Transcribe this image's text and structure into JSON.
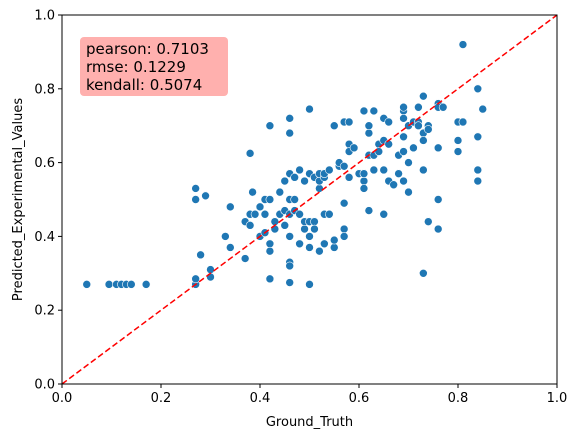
{
  "chart_data": {
    "type": "scatter",
    "xlabel": "Ground_Truth",
    "ylabel": "Predicted_Experimental_Values",
    "xlim": [
      0,
      1
    ],
    "ylim": [
      0,
      1
    ],
    "xticks": [
      "0.0",
      "0.2",
      "0.4",
      "0.6",
      "0.8",
      "1.0"
    ],
    "yticks": [
      "0.0",
      "0.2",
      "0.4",
      "0.6",
      "0.8",
      "1.0"
    ],
    "grid": false,
    "point_color": "#1f77b4",
    "reference_line": {
      "type": "identity",
      "style": "dashed",
      "color": "#ff0000"
    },
    "stats_box": {
      "placement": "top-left",
      "color": "#ffb0ae",
      "lines": [
        "pearson: 0.7103",
        "rmse: 0.1229",
        "kendall: 0.5074"
      ]
    },
    "points": [
      [
        0.05,
        0.27
      ],
      [
        0.095,
        0.27
      ],
      [
        0.11,
        0.27
      ],
      [
        0.12,
        0.27
      ],
      [
        0.13,
        0.27
      ],
      [
        0.14,
        0.27
      ],
      [
        0.17,
        0.27
      ],
      [
        0.27,
        0.27
      ],
      [
        0.27,
        0.285
      ],
      [
        0.27,
        0.5
      ],
      [
        0.27,
        0.53
      ],
      [
        0.28,
        0.35
      ],
      [
        0.29,
        0.51
      ],
      [
        0.3,
        0.29
      ],
      [
        0.3,
        0.31
      ],
      [
        0.33,
        0.4
      ],
      [
        0.34,
        0.37
      ],
      [
        0.34,
        0.48
      ],
      [
        0.37,
        0.34
      ],
      [
        0.37,
        0.44
      ],
      [
        0.38,
        0.43
      ],
      [
        0.38,
        0.46
      ],
      [
        0.385,
        0.52
      ],
      [
        0.39,
        0.46
      ],
      [
        0.38,
        0.625
      ],
      [
        0.4,
        0.48
      ],
      [
        0.4,
        0.4
      ],
      [
        0.41,
        0.41
      ],
      [
        0.41,
        0.46
      ],
      [
        0.41,
        0.5
      ],
      [
        0.42,
        0.5
      ],
      [
        0.42,
        0.38
      ],
      [
        0.42,
        0.36
      ],
      [
        0.42,
        0.285
      ],
      [
        0.42,
        0.7
      ],
      [
        0.43,
        0.42
      ],
      [
        0.43,
        0.44
      ],
      [
        0.44,
        0.46
      ],
      [
        0.44,
        0.52
      ],
      [
        0.45,
        0.55
      ],
      [
        0.45,
        0.47
      ],
      [
        0.45,
        0.43
      ],
      [
        0.46,
        0.57
      ],
      [
        0.46,
        0.5
      ],
      [
        0.46,
        0.46
      ],
      [
        0.46,
        0.4
      ],
      [
        0.46,
        0.33
      ],
      [
        0.46,
        0.32
      ],
      [
        0.46,
        0.275
      ],
      [
        0.46,
        0.68
      ],
      [
        0.46,
        0.72
      ],
      [
        0.47,
        0.56
      ],
      [
        0.47,
        0.5
      ],
      [
        0.47,
        0.47
      ],
      [
        0.48,
        0.58
      ],
      [
        0.48,
        0.46
      ],
      [
        0.48,
        0.38
      ],
      [
        0.49,
        0.42
      ],
      [
        0.49,
        0.44
      ],
      [
        0.49,
        0.55
      ],
      [
        0.5,
        0.57
      ],
      [
        0.5,
        0.44
      ],
      [
        0.5,
        0.4
      ],
      [
        0.5,
        0.37
      ],
      [
        0.5,
        0.27
      ],
      [
        0.5,
        0.745
      ],
      [
        0.51,
        0.44
      ],
      [
        0.51,
        0.42
      ],
      [
        0.51,
        0.56
      ],
      [
        0.52,
        0.53
      ],
      [
        0.52,
        0.36
      ],
      [
        0.52,
        0.55
      ],
      [
        0.52,
        0.57
      ],
      [
        0.53,
        0.46
      ],
      [
        0.53,
        0.38
      ],
      [
        0.53,
        0.56
      ],
      [
        0.53,
        0.57
      ],
      [
        0.54,
        0.46
      ],
      [
        0.54,
        0.58
      ],
      [
        0.55,
        0.37
      ],
      [
        0.55,
        0.39
      ],
      [
        0.55,
        0.7
      ],
      [
        0.56,
        0.59
      ],
      [
        0.56,
        0.6
      ],
      [
        0.57,
        0.49
      ],
      [
        0.57,
        0.42
      ],
      [
        0.57,
        0.4
      ],
      [
        0.57,
        0.59
      ],
      [
        0.57,
        0.71
      ],
      [
        0.58,
        0.71
      ],
      [
        0.58,
        0.65
      ],
      [
        0.58,
        0.63
      ],
      [
        0.58,
        0.56
      ],
      [
        0.59,
        0.64
      ],
      [
        0.6,
        0.57
      ],
      [
        0.61,
        0.55
      ],
      [
        0.61,
        0.53
      ],
      [
        0.61,
        0.57
      ],
      [
        0.61,
        0.74
      ],
      [
        0.62,
        0.68
      ],
      [
        0.62,
        0.62
      ],
      [
        0.62,
        0.47
      ],
      [
        0.62,
        0.7
      ],
      [
        0.63,
        0.74
      ],
      [
        0.63,
        0.62
      ],
      [
        0.63,
        0.58
      ],
      [
        0.64,
        0.65
      ],
      [
        0.64,
        0.63
      ],
      [
        0.65,
        0.72
      ],
      [
        0.65,
        0.66
      ],
      [
        0.65,
        0.58
      ],
      [
        0.65,
        0.46
      ],
      [
        0.66,
        0.65
      ],
      [
        0.66,
        0.71
      ],
      [
        0.66,
        0.55
      ],
      [
        0.67,
        0.54
      ],
      [
        0.68,
        0.57
      ],
      [
        0.68,
        0.62
      ],
      [
        0.69,
        0.74
      ],
      [
        0.69,
        0.75
      ],
      [
        0.69,
        0.72
      ],
      [
        0.69,
        0.67
      ],
      [
        0.69,
        0.63
      ],
      [
        0.69,
        0.55
      ],
      [
        0.7,
        0.7
      ],
      [
        0.7,
        0.6
      ],
      [
        0.7,
        0.52
      ],
      [
        0.71,
        0.71
      ],
      [
        0.71,
        0.64
      ],
      [
        0.72,
        0.75
      ],
      [
        0.72,
        0.71
      ],
      [
        0.72,
        0.7
      ],
      [
        0.73,
        0.78
      ],
      [
        0.73,
        0.68
      ],
      [
        0.73,
        0.66
      ],
      [
        0.73,
        0.58
      ],
      [
        0.73,
        0.3
      ],
      [
        0.74,
        0.7
      ],
      [
        0.74,
        0.69
      ],
      [
        0.74,
        0.44
      ],
      [
        0.76,
        0.76
      ],
      [
        0.76,
        0.75
      ],
      [
        0.76,
        0.64
      ],
      [
        0.76,
        0.5
      ],
      [
        0.76,
        0.42
      ],
      [
        0.77,
        0.75
      ],
      [
        0.8,
        0.71
      ],
      [
        0.8,
        0.66
      ],
      [
        0.8,
        0.63
      ],
      [
        0.81,
        0.71
      ],
      [
        0.81,
        0.92
      ],
      [
        0.84,
        0.8
      ],
      [
        0.84,
        0.67
      ],
      [
        0.84,
        0.58
      ],
      [
        0.84,
        0.55
      ],
      [
        0.85,
        0.745
      ]
    ]
  }
}
